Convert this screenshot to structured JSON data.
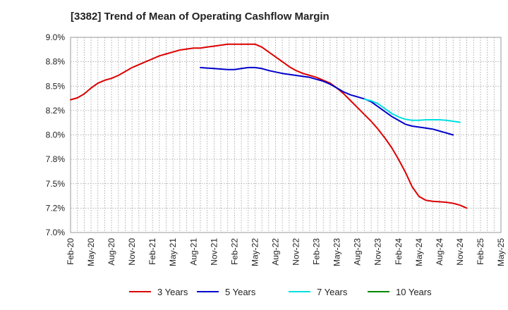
{
  "chart_data": {
    "type": "line",
    "title": "[3382]  Trend of Mean of Operating Cashflow Margin",
    "xlabel": "",
    "ylabel": "",
    "ylim": [
      7.0,
      9.0
    ],
    "yticks": [
      7.0,
      7.25,
      7.5,
      7.75,
      8.0,
      8.25,
      8.5,
      8.75,
      9.0
    ],
    "ytick_labels": [
      "7.0%",
      "7.2%",
      "7.5%",
      "7.8%",
      "8.0%",
      "8.2%",
      "8.5%",
      "8.8%",
      "9.0%"
    ],
    "x_tick_labels": [
      "Feb-20",
      "May-20",
      "Aug-20",
      "Nov-20",
      "Feb-21",
      "May-21",
      "Aug-21",
      "Nov-21",
      "Feb-22",
      "May-22",
      "Aug-22",
      "Nov-22",
      "Feb-23",
      "May-23",
      "Aug-23",
      "Nov-23",
      "Feb-24",
      "May-24",
      "Aug-24",
      "Nov-24",
      "Feb-25",
      "May-25"
    ],
    "grid": true,
    "legend_position": "bottom",
    "series": [
      {
        "name": "3 Years",
        "color": "#dd0000",
        "start_index": 0,
        "values": [
          8.36,
          8.38,
          8.42,
          8.48,
          8.53,
          8.56,
          8.58,
          8.61,
          8.65,
          8.69,
          8.72,
          8.75,
          8.78,
          8.81,
          8.83,
          8.85,
          8.87,
          8.88,
          8.89,
          8.89,
          8.9,
          8.91,
          8.92,
          8.93,
          8.93,
          8.93,
          8.93,
          8.93,
          8.9,
          8.85,
          8.8,
          8.75,
          8.7,
          8.66,
          8.63,
          8.61,
          8.59,
          8.56,
          8.53,
          8.48,
          8.42,
          8.35,
          8.28,
          8.21,
          8.14,
          8.06,
          7.97,
          7.87,
          7.75,
          7.62,
          7.47,
          7.37,
          7.33,
          7.32,
          7.315,
          7.31,
          7.3,
          7.28,
          7.25
        ]
      },
      {
        "name": "5 Years",
        "color": "#0000cc",
        "start_index": 19,
        "values": [
          8.69,
          8.685,
          8.68,
          8.675,
          8.67,
          8.67,
          8.68,
          8.69,
          8.69,
          8.68,
          8.66,
          8.645,
          8.63,
          8.62,
          8.61,
          8.6,
          8.59,
          8.57,
          8.55,
          8.52,
          8.48,
          8.44,
          8.41,
          8.39,
          8.37,
          8.34,
          8.29,
          8.24,
          8.19,
          8.15,
          8.11,
          8.09,
          8.08,
          8.07,
          8.06,
          8.04,
          8.02,
          8.0
        ]
      },
      {
        "name": "7 Years",
        "color": "#00e0e0",
        "start_index": 43,
        "values": [
          8.365,
          8.35,
          8.32,
          8.27,
          8.22,
          8.185,
          8.16,
          8.15,
          8.15,
          8.155,
          8.155,
          8.155,
          8.15,
          8.14,
          8.13
        ]
      },
      {
        "name": "10 Years",
        "color": "#008800",
        "start_index": 0,
        "values": []
      }
    ]
  }
}
